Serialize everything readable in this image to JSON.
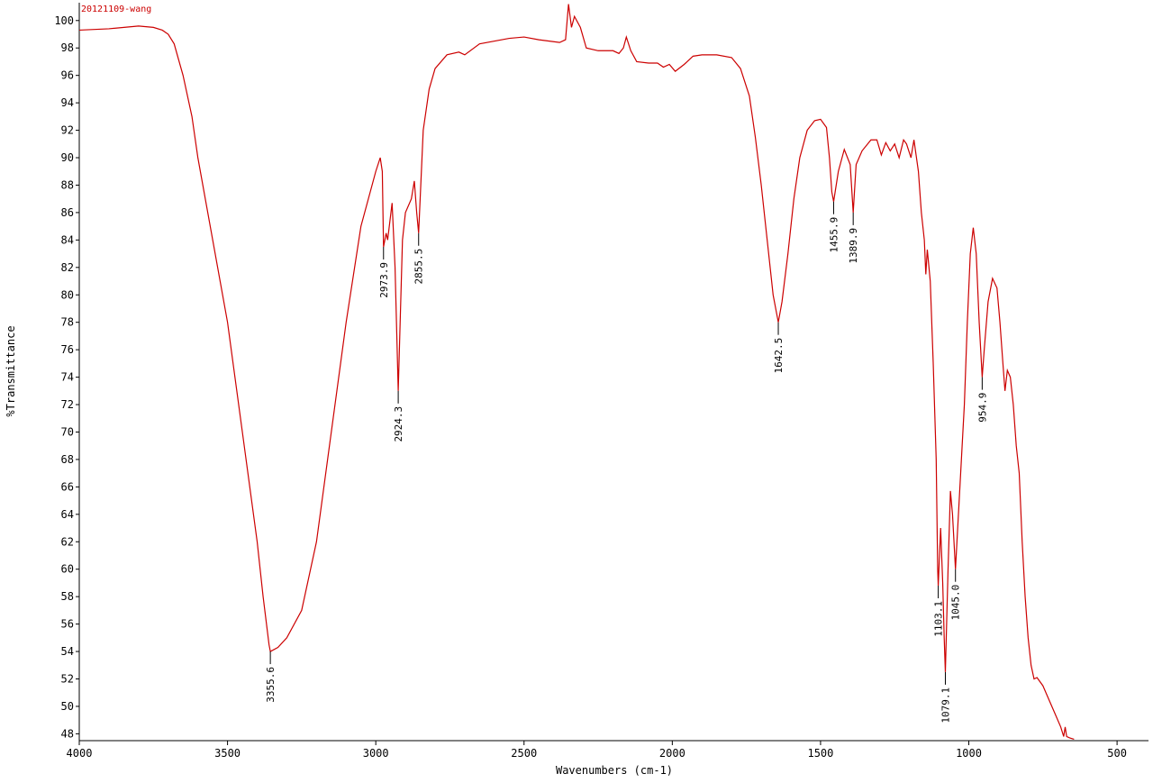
{
  "chart_data": {
    "type": "line",
    "title": "20121109-wang",
    "x_label": "Wavenumbers (cm-1)",
    "y_label": "%Transmittance",
    "color": "#cc0000",
    "xlim": [
      4000,
      394
    ],
    "ylim": [
      47.5,
      101.3
    ],
    "xticks": [
      4000,
      3500,
      3000,
      2500,
      2000,
      1500,
      1000,
      500
    ],
    "yticks": [
      48,
      50,
      52,
      54,
      56,
      58,
      60,
      62,
      64,
      66,
      68,
      70,
      72,
      74,
      76,
      78,
      80,
      82,
      84,
      86,
      88,
      90,
      92,
      94,
      96,
      98,
      100
    ],
    "x": [
      4000,
      3900,
      3800,
      3750,
      3720,
      3700,
      3680,
      3650,
      3620,
      3600,
      3550,
      3500,
      3450,
      3400,
      3380,
      3360,
      3355.6,
      3330,
      3300,
      3250,
      3200,
      3150,
      3100,
      3050,
      3000,
      2985,
      2978,
      2973.9,
      2965,
      2960,
      2945,
      2935,
      2924.3,
      2910,
      2900,
      2880,
      2870,
      2862,
      2855.5,
      2840,
      2820,
      2800,
      2760,
      2720,
      2700,
      2650,
      2550,
      2500,
      2450,
      2380,
      2360,
      2350,
      2340,
      2330,
      2310,
      2290,
      2250,
      2200,
      2180,
      2165,
      2155,
      2140,
      2120,
      2080,
      2050,
      2030,
      2010,
      1990,
      1960,
      1930,
      1900,
      1850,
      1800,
      1770,
      1740,
      1720,
      1700,
      1680,
      1660,
      1642.5,
      1630,
      1610,
      1590,
      1570,
      1545,
      1520,
      1500,
      1480,
      1470,
      1462,
      1455.9,
      1440,
      1420,
      1400,
      1389.9,
      1380,
      1360,
      1330,
      1310,
      1295,
      1280,
      1265,
      1250,
      1235,
      1220,
      1210,
      1195,
      1185,
      1170,
      1160,
      1150,
      1145,
      1140,
      1130,
      1120,
      1110,
      1105,
      1103.1,
      1095,
      1088,
      1083,
      1079.1,
      1070,
      1062,
      1055,
      1045.0,
      1030,
      1015,
      1005,
      995,
      985,
      975,
      965,
      954.9,
      948,
      935,
      920,
      905,
      895,
      885,
      878,
      870,
      860,
      850,
      840,
      830,
      820,
      810,
      800,
      790,
      780,
      770,
      750,
      730,
      710,
      690,
      680,
      675,
      670,
      660,
      645
    ],
    "values": [
      99.3,
      99.4,
      99.6,
      99.5,
      99.3,
      99.0,
      98.3,
      96,
      93,
      90,
      84,
      78,
      70,
      62,
      58,
      54.5,
      54.0,
      54.3,
      55,
      57,
      62,
      70,
      78,
      85,
      89,
      90.0,
      89,
      83.5,
      84.5,
      84,
      86.7,
      82,
      73,
      84,
      86,
      87,
      88.3,
      86,
      84.5,
      92,
      95,
      96.5,
      97.5,
      97.7,
      97.5,
      98.3,
      98.7,
      98.8,
      98.6,
      98.4,
      98.6,
      101.2,
      99.5,
      100.3,
      99.5,
      98,
      97.8,
      97.8,
      97.6,
      98,
      98.8,
      97.8,
      97,
      96.9,
      96.9,
      96.6,
      96.8,
      96.3,
      96.8,
      97.4,
      97.5,
      97.5,
      97.3,
      96.5,
      94.5,
      91.5,
      88,
      84,
      80,
      78.0,
      79.5,
      83,
      87,
      90,
      92,
      92.7,
      92.8,
      92.2,
      90,
      87.5,
      86.8,
      89,
      90.6,
      89.5,
      86,
      89.5,
      90.5,
      91.3,
      91.3,
      90.2,
      91.1,
      90.5,
      91.0,
      90,
      91.3,
      91,
      90,
      91.3,
      89,
      86,
      84,
      81.5,
      83.3,
      81,
      75,
      68,
      60,
      58.8,
      63,
      59,
      55,
      52.5,
      60,
      65.7,
      64,
      60,
      66,
      72,
      78,
      83,
      84.9,
      83,
      78,
      74,
      76,
      79.5,
      81.2,
      80.5,
      78,
      75,
      73,
      74.5,
      74,
      72,
      69,
      67,
      62,
      58,
      55,
      53,
      52,
      52.1,
      51.5,
      50.5,
      49.5,
      48.5,
      47.8,
      48.5,
      47.8,
      47.7,
      47.6
    ],
    "annotations": [
      {
        "x": 3355.6,
        "y": 54.0,
        "label": "3355.6"
      },
      {
        "x": 2973.9,
        "y": 83.5,
        "label": "2973.9"
      },
      {
        "x": 2924.3,
        "y": 73,
        "label": "2924.3"
      },
      {
        "x": 2855.5,
        "y": 84.5,
        "label": "2855.5"
      },
      {
        "x": 1642.5,
        "y": 78.0,
        "label": "1642.5"
      },
      {
        "x": 1455.9,
        "y": 86.8,
        "label": "1455.9"
      },
      {
        "x": 1389.9,
        "y": 86,
        "label": "1389.9"
      },
      {
        "x": 1103.1,
        "y": 58.8,
        "label": "1103.1"
      },
      {
        "x": 1079.1,
        "y": 52.5,
        "label": "1079.1"
      },
      {
        "x": 1045.0,
        "y": 60,
        "label": "1045.0"
      },
      {
        "x": 954.9,
        "y": 74,
        "label": "954.9"
      }
    ]
  }
}
